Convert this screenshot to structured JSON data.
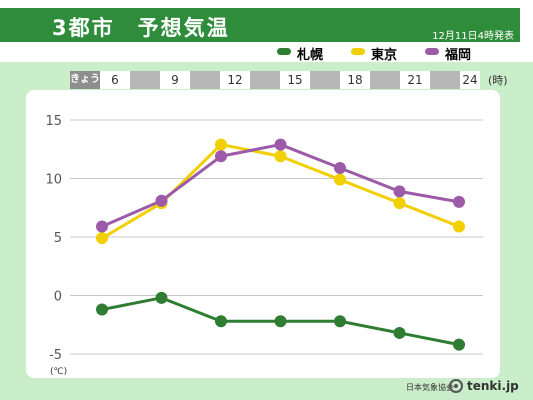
{
  "title": "3都市　予想気温",
  "issued": "12月11日4時発表",
  "legend": [
    {
      "name": "札幌",
      "color": "#2e7d32"
    },
    {
      "name": "東京",
      "color": "#f2cf00"
    },
    {
      "name": "福岡",
      "color": "#9c5aa8"
    }
  ],
  "time_axis": {
    "day_label": "きょう",
    "hours": [
      "6",
      "9",
      "12",
      "15",
      "18",
      "21",
      "24"
    ],
    "unit": "(時)"
  },
  "chart_data": {
    "type": "line",
    "title": "3都市　予想気温",
    "xlabel": "(時)",
    "ylabel": "(℃)",
    "x": [
      6,
      9,
      12,
      15,
      18,
      21,
      24
    ],
    "ylim": [
      -5,
      15
    ],
    "yticks": [
      15,
      10,
      5,
      0,
      -5
    ],
    "grid": true,
    "legend_position": "top-right",
    "series": [
      {
        "name": "札幌",
        "color": "#2e7d32",
        "values": [
          -1.2,
          -0.2,
          -2.2,
          -2.2,
          -2.2,
          -3.2,
          -4.2
        ]
      },
      {
        "name": "東京",
        "color": "#f2cf00",
        "values": [
          4.9,
          7.9,
          12.9,
          11.9,
          9.9,
          7.9,
          5.9
        ]
      },
      {
        "name": "福岡",
        "color": "#9c5aa8",
        "values": [
          5.9,
          8.1,
          11.9,
          12.9,
          10.9,
          8.9,
          8.0
        ]
      }
    ]
  },
  "credit": {
    "agency": "日本気象協会",
    "brand": "tenki.jp"
  }
}
